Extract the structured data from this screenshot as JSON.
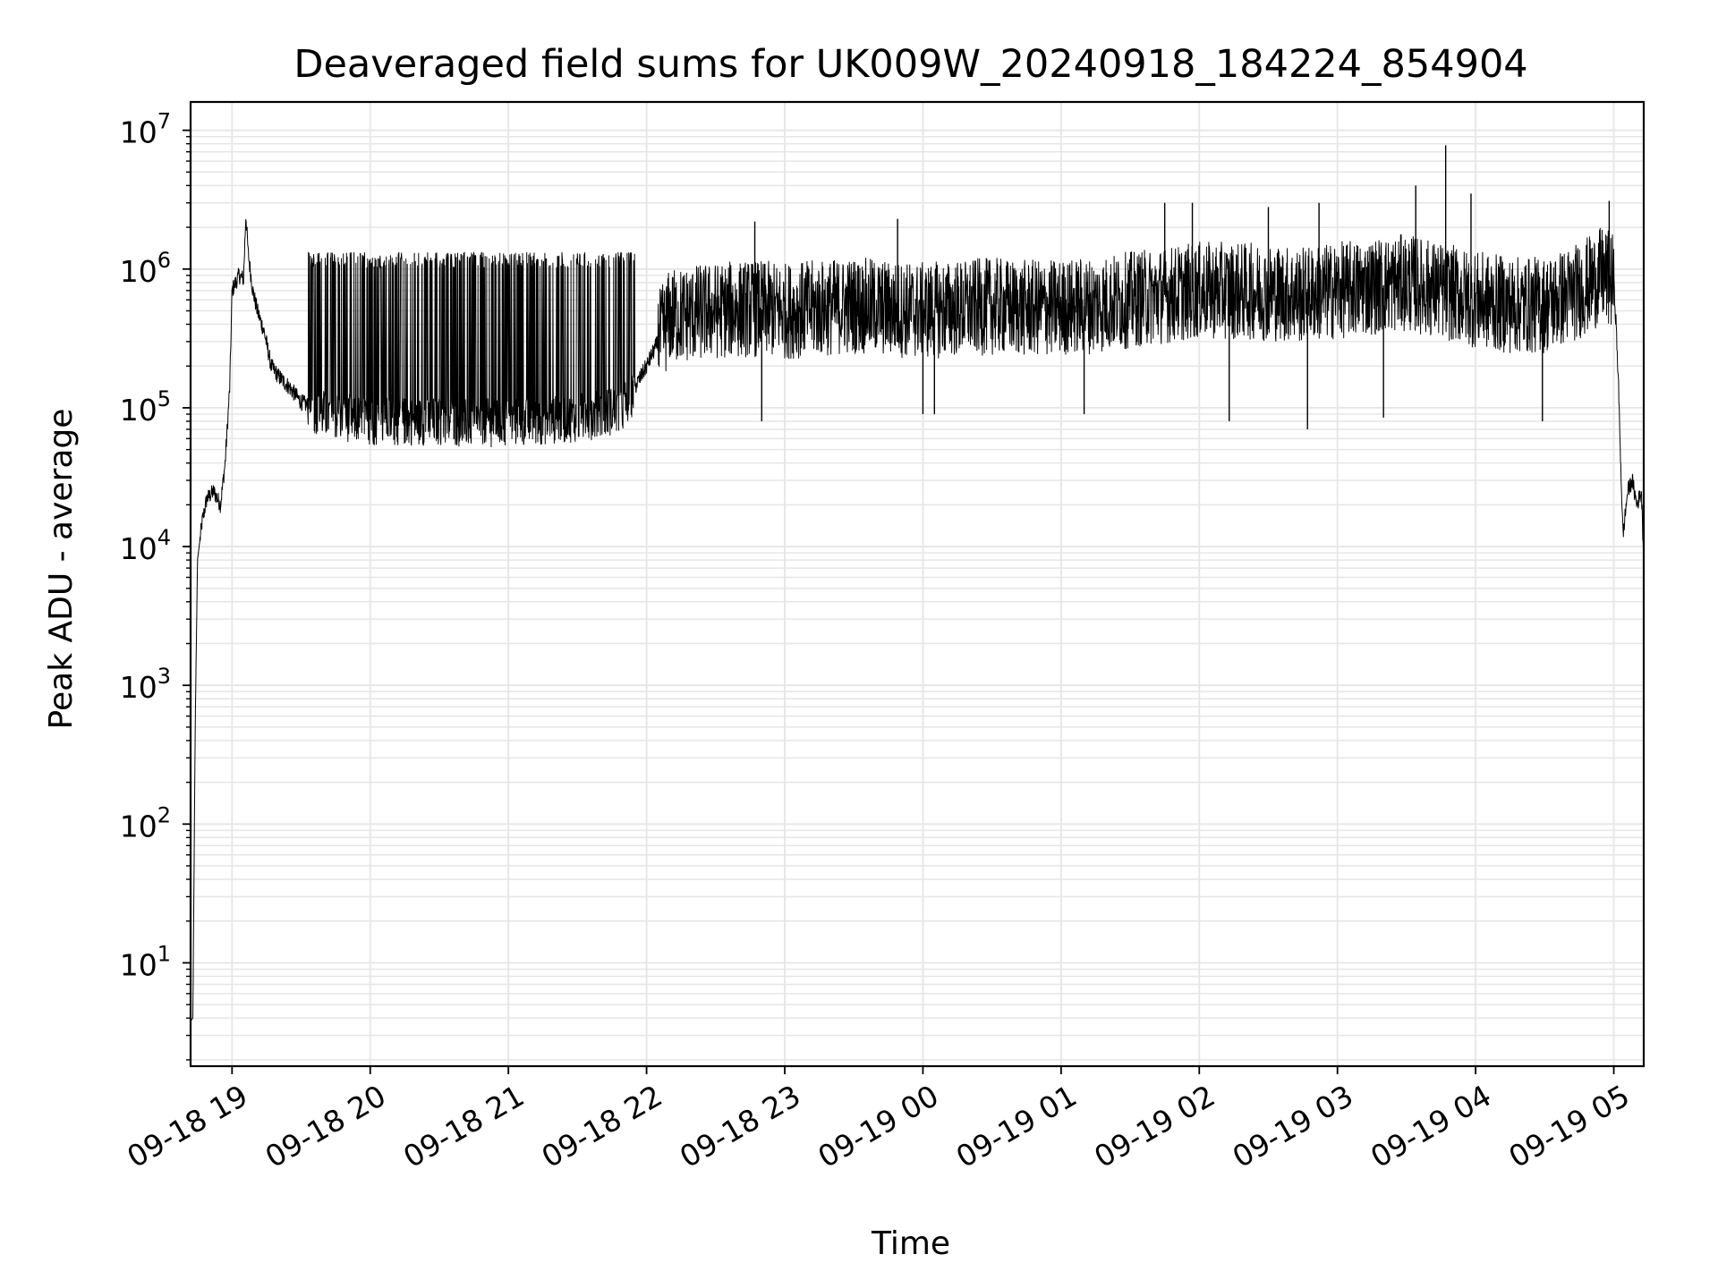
{
  "chart_data": {
    "type": "line",
    "title": "Deaveraged field sums for UK009W_20240918_184224_854904",
    "xlabel": "Time",
    "ylabel": "Peak ADU - average",
    "x_scale": "time",
    "y_scale": "log",
    "xlim": [
      "2024-09-18T18:42",
      "2024-09-19T05:13"
    ],
    "ylim": [
      1.8,
      16000000
    ],
    "x_ticks": [
      {
        "time": "2024-09-18T19:00",
        "label": "09-18 19"
      },
      {
        "time": "2024-09-18T20:00",
        "label": "09-18 20"
      },
      {
        "time": "2024-09-18T21:00",
        "label": "09-18 21"
      },
      {
        "time": "2024-09-18T22:00",
        "label": "09-18 22"
      },
      {
        "time": "2024-09-18T23:00",
        "label": "09-18 23"
      },
      {
        "time": "2024-09-19T00:00",
        "label": "09-19 00"
      },
      {
        "time": "2024-09-19T01:00",
        "label": "09-19 01"
      },
      {
        "time": "2024-09-19T02:00",
        "label": "09-19 02"
      },
      {
        "time": "2024-09-19T03:00",
        "label": "09-19 03"
      },
      {
        "time": "2024-09-19T04:00",
        "label": "09-19 04"
      },
      {
        "time": "2024-09-19T05:00",
        "label": "09-19 05"
      }
    ],
    "y_ticks": [
      {
        "value": 10,
        "base": "10",
        "exp": "1"
      },
      {
        "value": 100,
        "base": "10",
        "exp": "2"
      },
      {
        "value": 1000,
        "base": "10",
        "exp": "3"
      },
      {
        "value": 10000,
        "base": "10",
        "exp": "4"
      },
      {
        "value": 100000,
        "base": "10",
        "exp": "5"
      },
      {
        "value": 1000000,
        "base": "10",
        "exp": "6"
      },
      {
        "value": 10000000,
        "base": "10",
        "exp": "7"
      }
    ],
    "grid": true,
    "line_color": "#000000",
    "grid_color": "#e6e6e6",
    "series": [
      {
        "points": [
          [
            "2024-09-18T18:42",
            3.8
          ],
          [
            "2024-09-18T18:43",
            4
          ],
          [
            "2024-09-18T18:44",
            500
          ],
          [
            "2024-09-18T18:45",
            8000
          ],
          [
            "2024-09-18T18:47",
            15000
          ],
          [
            "2024-09-18T18:49",
            22000
          ],
          [
            "2024-09-18T18:52",
            25000
          ],
          [
            "2024-09-18T18:55",
            20000
          ],
          [
            "2024-09-18T18:57",
            40000
          ],
          [
            "2024-09-18T18:59",
            140000
          ],
          [
            "2024-09-18T19:00",
            700000
          ],
          [
            "2024-09-18T19:03",
            900000
          ],
          [
            "2024-09-18T19:05",
            850000
          ],
          [
            "2024-09-18T19:06",
            2500000
          ],
          [
            "2024-09-18T19:07",
            1300000
          ],
          [
            "2024-09-18T19:09",
            700000
          ],
          [
            "2024-09-18T19:11",
            500000
          ],
          [
            "2024-09-18T19:14",
            350000
          ],
          [
            "2024-09-18T19:17",
            200000
          ],
          [
            "2024-09-18T19:20",
            170000
          ],
          [
            "2024-09-18T19:25",
            140000
          ],
          [
            "2024-09-18T19:30",
            110000
          ],
          [
            "2024-09-18T19:40",
            90000
          ],
          [
            "2024-09-18T19:50",
            85000
          ],
          [
            "2024-09-18T20:00",
            80000
          ],
          [
            "2024-09-18T20:10",
            80000
          ],
          [
            "2024-09-18T20:20",
            80000
          ],
          [
            "2024-09-18T20:30",
            80000
          ],
          [
            "2024-09-18T20:40",
            78000
          ],
          [
            "2024-09-18T20:50",
            78000
          ],
          [
            "2024-09-18T21:00",
            78000
          ],
          [
            "2024-09-18T21:10",
            80000
          ],
          [
            "2024-09-18T21:20",
            82000
          ],
          [
            "2024-09-18T21:30",
            85000
          ],
          [
            "2024-09-18T21:40",
            90000
          ],
          [
            "2024-09-18T21:50",
            100000
          ],
          [
            "2024-09-18T22:00",
            200000
          ],
          [
            "2024-09-18T22:10",
            450000
          ],
          [
            "2024-09-18T22:20",
            480000
          ],
          [
            "2024-09-18T22:30",
            500000
          ],
          [
            "2024-09-18T22:45",
            520000
          ],
          [
            "2024-09-18T23:00",
            500000
          ],
          [
            "2024-09-18T23:15",
            520000
          ],
          [
            "2024-09-18T23:30",
            550000
          ],
          [
            "2024-09-18T23:45",
            520000
          ],
          [
            "2024-09-19T00:00",
            500000
          ],
          [
            "2024-09-19T00:15",
            520000
          ],
          [
            "2024-09-19T00:30",
            540000
          ],
          [
            "2024-09-19T00:45",
            520000
          ],
          [
            "2024-09-19T01:00",
            530000
          ],
          [
            "2024-09-19T01:15",
            550000
          ],
          [
            "2024-09-19T01:30",
            600000
          ],
          [
            "2024-09-19T01:45",
            650000
          ],
          [
            "2024-09-19T02:00",
            700000
          ],
          [
            "2024-09-19T02:15",
            700000
          ],
          [
            "2024-09-19T02:30",
            680000
          ],
          [
            "2024-09-19T02:45",
            650000
          ],
          [
            "2024-09-19T03:00",
            700000
          ],
          [
            "2024-09-19T03:15",
            750000
          ],
          [
            "2024-09-19T03:30",
            800000
          ],
          [
            "2024-09-19T03:45",
            700000
          ],
          [
            "2024-09-19T04:00",
            600000
          ],
          [
            "2024-09-19T04:15",
            550000
          ],
          [
            "2024-09-19T04:30",
            550000
          ],
          [
            "2024-09-19T04:45",
            700000
          ],
          [
            "2024-09-19T04:55",
            900000
          ],
          [
            "2024-09-19T05:00",
            800000
          ],
          [
            "2024-09-19T05:01",
            400000
          ],
          [
            "2024-09-19T05:02",
            150000
          ],
          [
            "2024-09-19T05:03",
            40000
          ],
          [
            "2024-09-19T05:04",
            12000
          ],
          [
            "2024-09-19T05:06",
            25000
          ],
          [
            "2024-09-19T05:08",
            30000
          ],
          [
            "2024-09-19T05:10",
            20000
          ],
          [
            "2024-09-19T05:12",
            25000
          ],
          [
            "2024-09-19T05:13",
            8000
          ]
        ],
        "spikes": [
          [
            "2024-09-18T22:47",
            2200000
          ],
          [
            "2024-09-18T23:49",
            2300000
          ],
          [
            "2024-09-19T01:45",
            3000000
          ],
          [
            "2024-09-19T01:57",
            3000000
          ],
          [
            "2024-09-19T02:30",
            2800000
          ],
          [
            "2024-09-19T02:52",
            3000000
          ],
          [
            "2024-09-19T03:34",
            4000000
          ],
          [
            "2024-09-19T03:47",
            7800000
          ],
          [
            "2024-09-19T03:58",
            3500000
          ],
          [
            "2024-09-19T04:58",
            3100000
          ],
          [
            "2024-09-18T22:50",
            80000
          ],
          [
            "2024-09-19T00:00",
            90000
          ],
          [
            "2024-09-19T00:05",
            90000
          ],
          [
            "2024-09-19T01:10",
            90000
          ],
          [
            "2024-09-19T02:13",
            80000
          ],
          [
            "2024-09-19T02:47",
            70000
          ],
          [
            "2024-09-19T03:20",
            85000
          ],
          [
            "2024-09-19T04:29",
            80000
          ]
        ]
      }
    ]
  }
}
